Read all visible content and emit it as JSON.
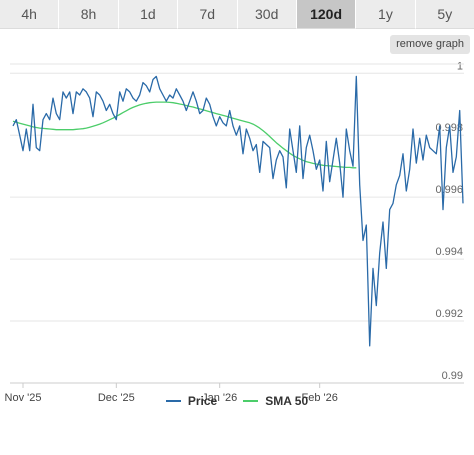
{
  "tabs": [
    {
      "label": "4h",
      "active": false
    },
    {
      "label": "8h",
      "active": false
    },
    {
      "label": "1d",
      "active": false
    },
    {
      "label": "7d",
      "active": false
    },
    {
      "label": "30d",
      "active": false
    },
    {
      "label": "120d",
      "active": true
    },
    {
      "label": "1y",
      "active": false
    },
    {
      "label": "5y",
      "active": false
    }
  ],
  "remove_graph_label": "remove graph",
  "colors": {
    "price": "#2a6aa8",
    "sma": "#4ccd6a",
    "grid": "#e6e6e6"
  },
  "chart_data": {
    "type": "line",
    "x_tick_labels": [
      "Nov '25",
      "Dec '25",
      "Jan '26",
      "Feb '26"
    ],
    "y_tick_labels": [
      "1",
      "0.998",
      "0.996",
      "0.994",
      "0.992",
      "0.99"
    ],
    "ylim": [
      0.99,
      1.0003
    ],
    "grid": true,
    "legend_position": "bottom",
    "series": [
      {
        "name": "Price",
        "values": [
          0.9983,
          0.9985,
          0.998,
          0.9975,
          0.9982,
          0.9975,
          0.999,
          0.9976,
          0.9975,
          0.9985,
          0.9987,
          0.9985,
          0.9992,
          0.9987,
          0.9985,
          0.9994,
          0.9992,
          0.9994,
          0.9987,
          0.9994,
          0.9993,
          0.9995,
          0.9994,
          0.9992,
          0.9986,
          0.9994,
          0.9993,
          0.9991,
          0.9988,
          0.999,
          0.9987,
          0.9985,
          0.9994,
          0.9991,
          0.9995,
          0.9994,
          0.9992,
          0.9991,
          0.9993,
          0.9997,
          0.9996,
          0.9994,
          0.9998,
          0.9999,
          0.9995,
          0.9993,
          0.9991,
          0.9993,
          0.9992,
          0.9995,
          0.9993,
          0.9991,
          0.9988,
          0.9991,
          0.9994,
          0.9991,
          0.9987,
          0.9988,
          0.9992,
          0.999,
          0.9986,
          0.9983,
          0.9986,
          0.9984,
          0.9983,
          0.9988,
          0.9983,
          0.998,
          0.9983,
          0.9974,
          0.9982,
          0.9979,
          0.9975,
          0.9977,
          0.9968,
          0.9978,
          0.9977,
          0.9976,
          0.9966,
          0.9972,
          0.9975,
          0.9973,
          0.9963,
          0.9982,
          0.9975,
          0.9968,
          0.9983,
          0.9966,
          0.9976,
          0.998,
          0.9975,
          0.9969,
          0.9972,
          0.9962,
          0.9978,
          0.9965,
          0.9972,
          0.9979,
          0.9971,
          0.996,
          0.9982,
          0.9975,
          0.997,
          0.9999,
          0.9964,
          0.9946,
          0.9951,
          0.9912,
          0.9937,
          0.9925,
          0.9942,
          0.9952,
          0.9937,
          0.9956,
          0.9958,
          0.9964,
          0.9967,
          0.9974,
          0.9962,
          0.9969,
          0.9982,
          0.9971,
          0.9979,
          0.9972,
          0.998,
          0.9976,
          0.9975,
          0.9974,
          0.9983,
          0.9956,
          0.9976,
          0.9983,
          0.9968,
          0.9973,
          0.9988,
          0.9958
        ],
        "color": "#2a6aa8"
      },
      {
        "name": "SMA 50",
        "values": [
          0.99845,
          0.99842,
          0.99839,
          0.99836,
          0.99833,
          0.9983,
          0.99827,
          0.99825,
          0.99823,
          0.99822,
          0.99821,
          0.9982,
          0.99819,
          0.99818,
          0.99818,
          0.99818,
          0.99818,
          0.99818,
          0.99818,
          0.99819,
          0.9982,
          0.99821,
          0.99823,
          0.99826,
          0.99829,
          0.99832,
          0.99836,
          0.9984,
          0.99845,
          0.9985,
          0.99855,
          0.99861,
          0.99867,
          0.99873,
          0.99879,
          0.99885,
          0.9989,
          0.99894,
          0.99898,
          0.99901,
          0.99903,
          0.99905,
          0.99906,
          0.99907,
          0.99907,
          0.99907,
          0.99907,
          0.99906,
          0.99905,
          0.99903,
          0.99901,
          0.99899,
          0.99896,
          0.99893,
          0.99891,
          0.99888,
          0.99885,
          0.99882,
          0.99879,
          0.99876,
          0.99873,
          0.9987,
          0.99867,
          0.99864,
          0.99861,
          0.99858,
          0.99855,
          0.99852,
          0.99849,
          0.99846,
          0.99843,
          0.9984,
          0.99836,
          0.9983,
          0.99823,
          0.99815,
          0.99806,
          0.99796,
          0.99786,
          0.99776,
          0.99767,
          0.99758,
          0.9975,
          0.99742,
          0.99735,
          0.99729,
          0.99724,
          0.99719,
          0.99715,
          0.99712,
          0.99709,
          0.99707,
          0.99705,
          0.99703,
          0.99702,
          0.99701,
          0.997,
          0.99699,
          0.99698,
          0.99697,
          0.99696,
          0.99696,
          0.99695,
          0.99695
        ],
        "color": "#4ccd6a"
      }
    ]
  }
}
